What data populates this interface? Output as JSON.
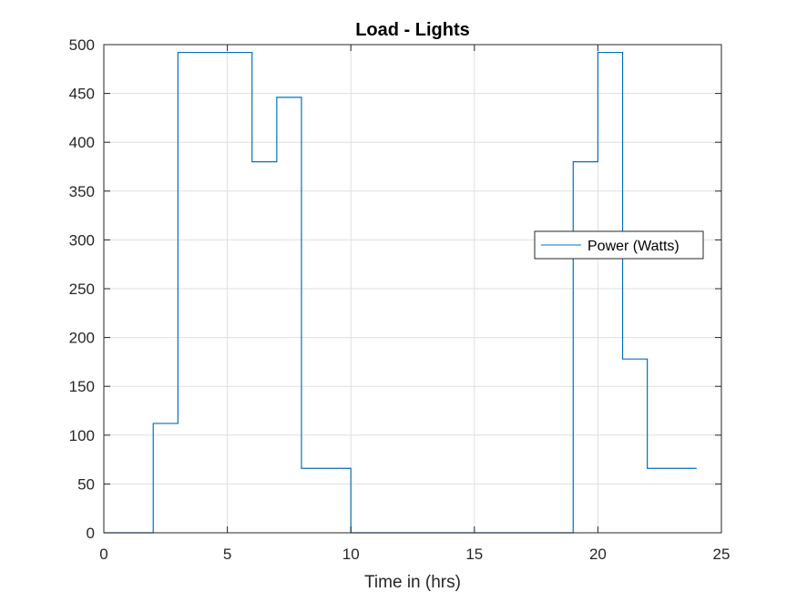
{
  "chart_data": {
    "type": "line",
    "title": "Load - Lights",
    "xlabel": "Time in (hrs)",
    "ylabel": "",
    "xlim": [
      0,
      25
    ],
    "ylim": [
      0,
      500
    ],
    "xticks": [
      0,
      5,
      10,
      15,
      20,
      25
    ],
    "yticks": [
      0,
      50,
      100,
      150,
      200,
      250,
      300,
      350,
      400,
      450,
      500
    ],
    "grid": true,
    "legend_position": "right",
    "series": [
      {
        "name": "Power (Watts)",
        "color": "#0072BD",
        "style": "stairs",
        "x": [
          0,
          2,
          3,
          6,
          7,
          8,
          10,
          19,
          20,
          21,
          22,
          24
        ],
        "y": [
          0,
          112,
          492,
          380,
          446,
          66,
          0,
          380,
          492,
          178,
          66,
          66
        ]
      }
    ]
  }
}
